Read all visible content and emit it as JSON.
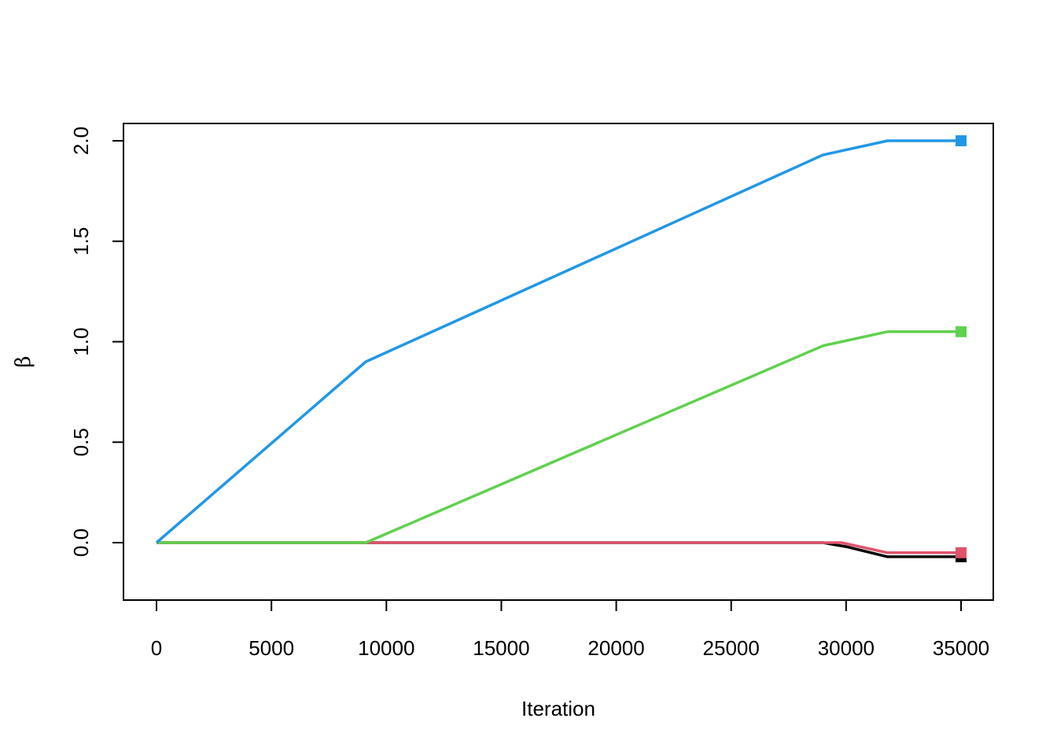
{
  "chart_data": {
    "type": "line",
    "xlabel": "Iteration",
    "ylabel": "β",
    "xlim": [
      0,
      35000
    ],
    "ylim": [
      -0.2857,
      2.0857
    ],
    "x_ticks": [
      0,
      5000,
      10000,
      15000,
      20000,
      25000,
      30000,
      35000
    ],
    "x_tick_labels": [
      "0",
      "5000",
      "10000",
      "15000",
      "20000",
      "25000",
      "30000",
      "35000"
    ],
    "y_ticks": [
      0.0,
      0.5,
      1.0,
      1.5,
      2.0
    ],
    "y_tick_labels": [
      "0.0",
      "0.5",
      "1.0",
      "1.5",
      "2.0"
    ],
    "grid": false,
    "legend": "none",
    "series": [
      {
        "color": "#000000",
        "x": [
          0,
          29000,
          30000,
          31800,
          35000
        ],
        "y": [
          0.0,
          0.0,
          -0.02,
          -0.07,
          -0.07
        ],
        "end_marker": "square"
      },
      {
        "color": "#DF536B",
        "x": [
          0,
          29800,
          31800,
          35000
        ],
        "y": [
          0.0,
          0.0,
          -0.05,
          -0.05
        ],
        "end_marker": "square"
      },
      {
        "color": "#61D04F",
        "x": [
          0,
          9100,
          29000,
          29800,
          31800,
          35000
        ],
        "y": [
          0.0,
          0.0,
          0.98,
          1.0,
          1.05,
          1.05
        ],
        "end_marker": "square"
      },
      {
        "color": "#2297E6",
        "x": [
          0,
          9100,
          29000,
          29800,
          31800,
          35000
        ],
        "y": [
          0.0,
          0.9,
          1.93,
          1.95,
          2.0,
          2.0
        ],
        "end_marker": "square"
      }
    ]
  }
}
